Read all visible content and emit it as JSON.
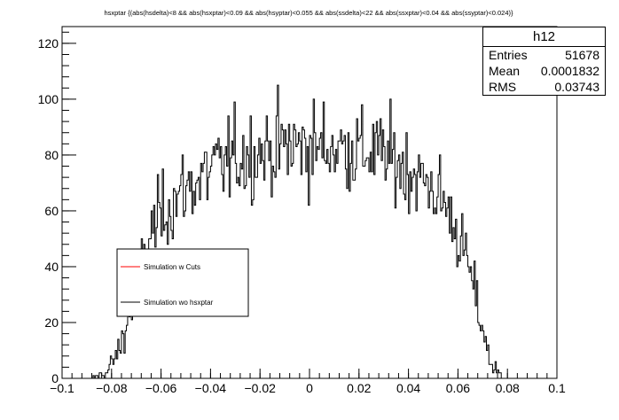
{
  "chart_data": {
    "type": "histogram",
    "title": "hsxptar {(abs(hsdelta)<8 && abs(hsxptar)<0.09 && abs(hsyptar)<0.055 && abs(ssdelta)<22 && abs(ssxptar)<0.04 && abs(ssyptar)<0.024)}",
    "xlim": [
      -0.1,
      0.1
    ],
    "ylim": [
      0,
      126
    ],
    "xticks": [
      "−0.1",
      "−0.08",
      "−0.06",
      "−0.04",
      "−0.02",
      "0",
      "0.02",
      "0.04",
      "0.06",
      "0.08",
      "0.1"
    ],
    "yticks": [
      "0",
      "20",
      "40",
      "60",
      "80",
      "100",
      "120"
    ],
    "grid": false,
    "legend_placement": "left-middle",
    "series": [
      {
        "name": "Simulation w Cuts",
        "color": "#ff0000",
        "values": []
      },
      {
        "name": "Simulation wo hsxptar",
        "color": "#000000",
        "envelope": [
          {
            "x": -0.088,
            "y": 0
          },
          {
            "x": -0.082,
            "y": 2
          },
          {
            "x": -0.077,
            "y": 10
          },
          {
            "x": -0.072,
            "y": 25
          },
          {
            "x": -0.068,
            "y": 40
          },
          {
            "x": -0.064,
            "y": 52
          },
          {
            "x": -0.06,
            "y": 59
          },
          {
            "x": -0.05,
            "y": 68
          },
          {
            "x": -0.04,
            "y": 74
          },
          {
            "x": -0.03,
            "y": 79
          },
          {
            "x": -0.02,
            "y": 81
          },
          {
            "x": -0.01,
            "y": 83
          },
          {
            "x": 0.0,
            "y": 83
          },
          {
            "x": 0.01,
            "y": 83
          },
          {
            "x": 0.02,
            "y": 82
          },
          {
            "x": 0.03,
            "y": 80
          },
          {
            "x": 0.04,
            "y": 75
          },
          {
            "x": 0.05,
            "y": 68
          },
          {
            "x": 0.055,
            "y": 62
          },
          {
            "x": 0.06,
            "y": 52
          },
          {
            "x": 0.065,
            "y": 38
          },
          {
            "x": 0.07,
            "y": 18
          },
          {
            "x": 0.073,
            "y": 6
          },
          {
            "x": 0.078,
            "y": 0
          }
        ]
      }
    ]
  },
  "stats": {
    "name": "h12",
    "entries_label": "Entries",
    "entries": "51678",
    "mean_label": "Mean",
    "mean": "0.0001832",
    "rms_label": "RMS",
    "rms": "0.03743"
  }
}
